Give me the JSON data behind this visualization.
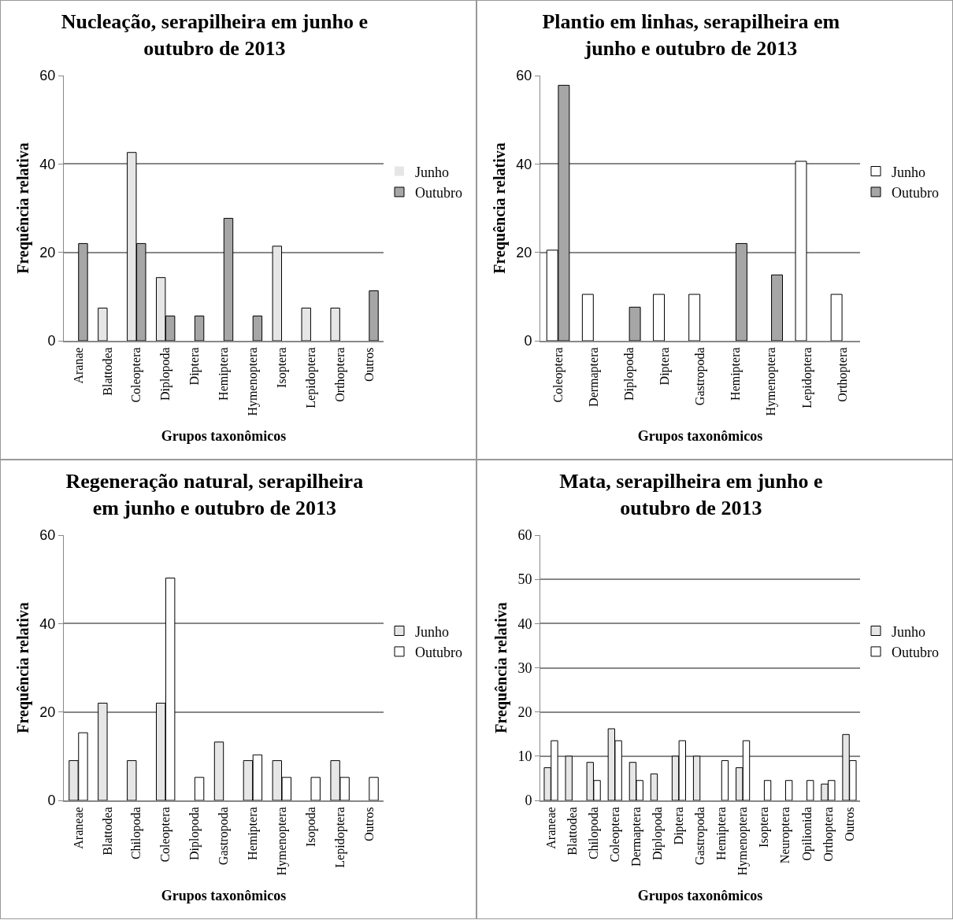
{
  "chart_data": [
    {
      "type": "bar",
      "title": "Nucleação, serapilheira em junho e outubro de 2013",
      "xlabel": "Grupos taxonômicos",
      "ylabel": "Frequência relativa",
      "categories": [
        "Aranae",
        "Blattodea",
        "Coleoptera",
        "Diplopoda",
        "Diptera",
        "Hemiptera",
        "Hymenoptera",
        "Isoptera",
        "Lepidoptera",
        "Orthoptera",
        "Outros"
      ],
      "series": [
        {
          "name": "Junho",
          "color": "#e6e6e6",
          "values": [
            0,
            7.4,
            42.6,
            14.3,
            0,
            0,
            0,
            21.4,
            7.4,
            7.4,
            0
          ]
        },
        {
          "name": "Outubro",
          "color": "#a6a6a6",
          "values": [
            22,
            0,
            22,
            5.6,
            5.6,
            27.7,
            5.6,
            0,
            0,
            0,
            11.3
          ]
        }
      ],
      "ylim": [
        0,
        60
      ],
      "yticks": [
        0,
        20,
        40,
        60
      ],
      "grid": "y",
      "legend": "right"
    },
    {
      "type": "bar",
      "title": "Plantio em linhas, serapilheira em junho e outubro de 2013",
      "xlabel": "Grupos taxonômicos",
      "ylabel": "Frequência relativa",
      "categories": [
        "Coleoptera",
        "Dermaptera",
        "Diplopoda",
        "Diptera",
        "Gastropoda",
        "Hemiptera",
        "Hymenoptera",
        "Lepidoptera",
        "Orthoptera"
      ],
      "series": [
        {
          "name": "Junho",
          "color": "#ffffff",
          "values": [
            20.5,
            10.5,
            0,
            10.5,
            10.5,
            0,
            0,
            40.6,
            10.5
          ]
        },
        {
          "name": "Outubro",
          "color": "#a6a6a6",
          "values": [
            57.8,
            0,
            7.6,
            0,
            0,
            22,
            14.9,
            0,
            0
          ]
        }
      ],
      "ylim": [
        0,
        60
      ],
      "yticks": [
        0,
        20,
        40,
        60
      ],
      "grid": "y",
      "legend": "right"
    },
    {
      "type": "bar",
      "title": "Regeneração natural, serapilheira em junho e outubro de 2013",
      "xlabel": "Grupos taxonômicos",
      "ylabel": "Frequência relativa",
      "categories": [
        "Araneae",
        "Blattodea",
        "Chilopoda",
        "Coleoptera",
        "Diplopoda",
        "Gastropoda",
        "Hemiptera",
        "Hymenoptera",
        "Isopoda",
        "Lepidoptera",
        "Outros"
      ],
      "series": [
        {
          "name": "Junho",
          "color": "#e6e6e6",
          "values": [
            9,
            22,
            9,
            22,
            0,
            13.2,
            9,
            9,
            0,
            9,
            0
          ]
        },
        {
          "name": "Outubro",
          "color": "#ffffff",
          "values": [
            15.3,
            0,
            0,
            50.3,
            5.2,
            0,
            10.3,
            5.2,
            5.2,
            5.2,
            5.2
          ]
        }
      ],
      "ylim": [
        0,
        60
      ],
      "yticks": [
        0,
        20,
        40,
        60
      ],
      "grid": "y",
      "legend": "right"
    },
    {
      "type": "bar",
      "title": "Mata, serapilheira em junho e outubro de 2013",
      "xlabel": "Grupos taxonômicos",
      "ylabel": "Frequência relativa",
      "categories": [
        "Araneae",
        "Blattodea",
        "Chilopoda",
        "Coleoptera",
        "Dermaptera",
        "Diplopoda",
        "Diptera",
        "Gastropoda",
        "Hemiptera",
        "Hymenoptera",
        "Isoptera",
        "Neuroptera",
        "Opilionida",
        "Orthoptera",
        "Outros"
      ],
      "series": [
        {
          "name": "Junho",
          "color": "#e6e6e6",
          "values": [
            7.4,
            10,
            8.6,
            16.2,
            8.6,
            6,
            10,
            10,
            0,
            7.4,
            0,
            0,
            0,
            3.7,
            14.9
          ]
        },
        {
          "name": "Outubro",
          "color": "#ffffff",
          "values": [
            13.5,
            0,
            4.5,
            13.5,
            4.5,
            0,
            13.5,
            0,
            9,
            13.5,
            4.5,
            4.5,
            4.5,
            4.5,
            9
          ]
        }
      ],
      "ylim": [
        0,
        60
      ],
      "yticks": [
        0,
        10,
        20,
        30,
        40,
        50,
        60
      ],
      "grid": "y",
      "legend": "right"
    }
  ]
}
